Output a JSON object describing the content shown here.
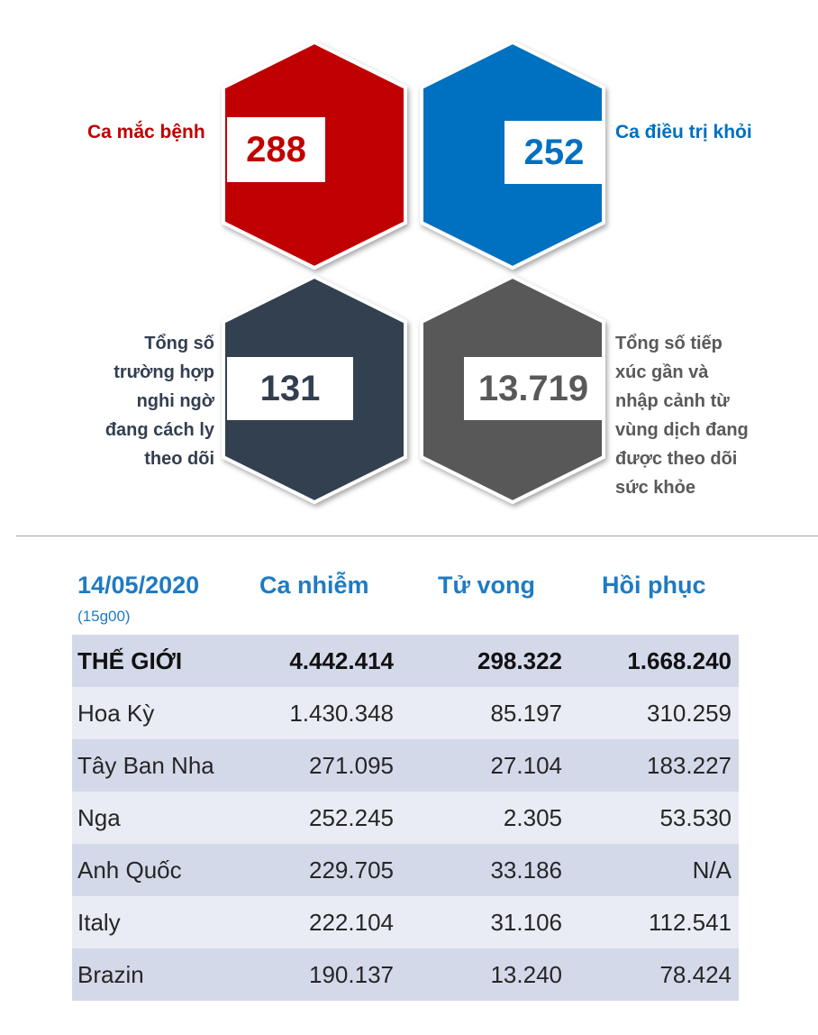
{
  "stats": {
    "cases": {
      "label": "Ca mắc bệnh",
      "value": "288",
      "color": "#c00000"
    },
    "recovered": {
      "label": "Ca điều trị khỏi",
      "value": "252",
      "color": "#0070c0"
    },
    "suspected": {
      "label_lines": [
        "Tổng số",
        "trường hợp",
        "nghi ngờ",
        "đang cách ly",
        "theo dõi"
      ],
      "value": "131",
      "color": "#333f50"
    },
    "contacts": {
      "label_lines": [
        "Tổng số tiếp",
        "xúc gần và",
        "nhập cảnh từ",
        "vùng dịch đang",
        "được theo dõi",
        "sức khỏe"
      ],
      "value": "13.719",
      "color": "#595959"
    }
  },
  "table": {
    "date": "14/05/2020",
    "time": "(15g00)",
    "headers": [
      "Ca nhiễm",
      "Tử vong",
      "Hồi phục"
    ],
    "rows": [
      {
        "name": "THẾ GIỚI",
        "infected": "4.442.414",
        "deaths": "298.322",
        "recovered": "1.668.240"
      },
      {
        "name": "Hoa Kỳ",
        "infected": "1.430.348",
        "deaths": "85.197",
        "recovered": "310.259"
      },
      {
        "name": "Tây Ban Nha",
        "infected": "271.095",
        "deaths": "27.104",
        "recovered": "183.227"
      },
      {
        "name": "Nga",
        "infected": "252.245",
        "deaths": "2.305",
        "recovered": "53.530"
      },
      {
        "name": "Anh Quốc",
        "infected": "229.705",
        "deaths": "33.186",
        "recovered": "N/A"
      },
      {
        "name": "Italy",
        "infected": "222.104",
        "deaths": "31.106",
        "recovered": "112.541"
      },
      {
        "name": "Brazin",
        "infected": "190.137",
        "deaths": "13.240",
        "recovered": "78.424"
      }
    ]
  }
}
